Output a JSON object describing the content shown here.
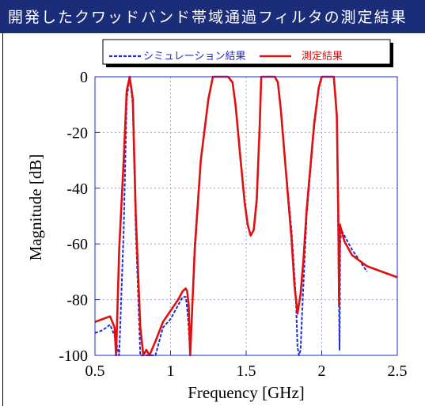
{
  "header": {
    "title": "開発したクワッドバンド帯域通過フィルタの測定結果"
  },
  "colors": {
    "header_bg": "#1b2d78",
    "simulation": "#1f2bd6",
    "measured": "#e01010",
    "grid": "#9aa3d6"
  },
  "chart_data": {
    "type": "line",
    "title": "",
    "xlabel": "Frequency [GHz]",
    "ylabel": "Magnitude [dB]",
    "xlim": [
      0.5,
      2.5
    ],
    "ylim": [
      -100,
      0
    ],
    "xticks": [
      0.5,
      1,
      1.5,
      2,
      2.5
    ],
    "xtick_labels": [
      "0.5",
      "1",
      "1.5",
      "2",
      "2.5"
    ],
    "yticks": [
      0,
      -20,
      -40,
      -60,
      -80,
      -100
    ],
    "ytick_labels": [
      "0",
      "-20",
      "-40",
      "-60",
      "-80",
      "-100"
    ],
    "grid": true,
    "legend_position": "top",
    "series": [
      {
        "name": "シミュレーション結果",
        "style": "dashed",
        "color": "#1f2bd6",
        "x": [
          0.5,
          0.55,
          0.6,
          0.63,
          0.66,
          0.69,
          0.71,
          0.73,
          0.75,
          0.77,
          0.8,
          0.84,
          0.9,
          0.95,
          1.0,
          1.05,
          1.08,
          1.1,
          1.11,
          1.12,
          1.13,
          1.16,
          1.2,
          1.25,
          1.28,
          1.38,
          1.41,
          1.43,
          1.46,
          1.49,
          1.51,
          1.53,
          1.55,
          1.57,
          1.59,
          1.6,
          1.69,
          1.71,
          1.73,
          1.76,
          1.8,
          1.83,
          1.84,
          1.85,
          1.86,
          1.87,
          1.9,
          1.95,
          1.98,
          2.0,
          2.02,
          2.08,
          2.1,
          2.11,
          2.115,
          2.118,
          2.12,
          2.122,
          2.13,
          2.15,
          2.2,
          2.25,
          2.3
        ],
        "y": [
          -92,
          -91,
          -89,
          -93,
          -100,
          -55,
          -8,
          0,
          -10,
          -55,
          -100,
          -100,
          -100,
          -90,
          -87,
          -82,
          -79,
          -79,
          -83,
          -90,
          -100,
          -60,
          -30,
          -8,
          0,
          0,
          -2,
          -10,
          -28,
          -45,
          -53,
          -57,
          -55,
          -45,
          -18,
          0,
          0,
          -2,
          -12,
          -32,
          -55,
          -80,
          -97,
          -100,
          -98,
          -85,
          -50,
          -18,
          -4,
          0,
          0,
          0,
          -15,
          -60,
          -85,
          -98,
          -85,
          -60,
          -55,
          -57,
          -62,
          -66,
          -70
        ]
      },
      {
        "name": "測定結果",
        "style": "solid",
        "color": "#e01010",
        "x": [
          0.5,
          0.55,
          0.6,
          0.63,
          0.64,
          0.66,
          0.69,
          0.71,
          0.73,
          0.75,
          0.77,
          0.8,
          0.82,
          0.84,
          0.86,
          0.9,
          0.95,
          1.0,
          1.05,
          1.08,
          1.1,
          1.11,
          1.12,
          1.13,
          1.16,
          1.2,
          1.25,
          1.28,
          1.38,
          1.41,
          1.43,
          1.46,
          1.49,
          1.51,
          1.53,
          1.55,
          1.57,
          1.59,
          1.6,
          1.69,
          1.71,
          1.73,
          1.76,
          1.8,
          1.82,
          1.84,
          1.86,
          1.88,
          1.9,
          1.95,
          1.98,
          2.0,
          2.02,
          2.08,
          2.1,
          2.11,
          2.115,
          2.12,
          2.13,
          2.15,
          2.2,
          2.3,
          2.4,
          2.5
        ],
        "y": [
          -88,
          -87,
          -86,
          -90,
          -100,
          -62,
          -30,
          -5,
          0,
          -8,
          -50,
          -90,
          -100,
          -98,
          -100,
          -95,
          -88,
          -84,
          -80,
          -77,
          -76,
          -77,
          -82,
          -100,
          -62,
          -30,
          -8,
          0,
          0,
          -2,
          -10,
          -28,
          -45,
          -53,
          -57,
          -55,
          -44,
          -17,
          0,
          0,
          -2,
          -12,
          -32,
          -58,
          -75,
          -85,
          -78,
          -65,
          -48,
          -17,
          -4,
          0,
          0,
          0,
          -14,
          -50,
          -82,
          -53,
          -55,
          -59,
          -64,
          -68,
          -70,
          -72
        ]
      }
    ]
  }
}
